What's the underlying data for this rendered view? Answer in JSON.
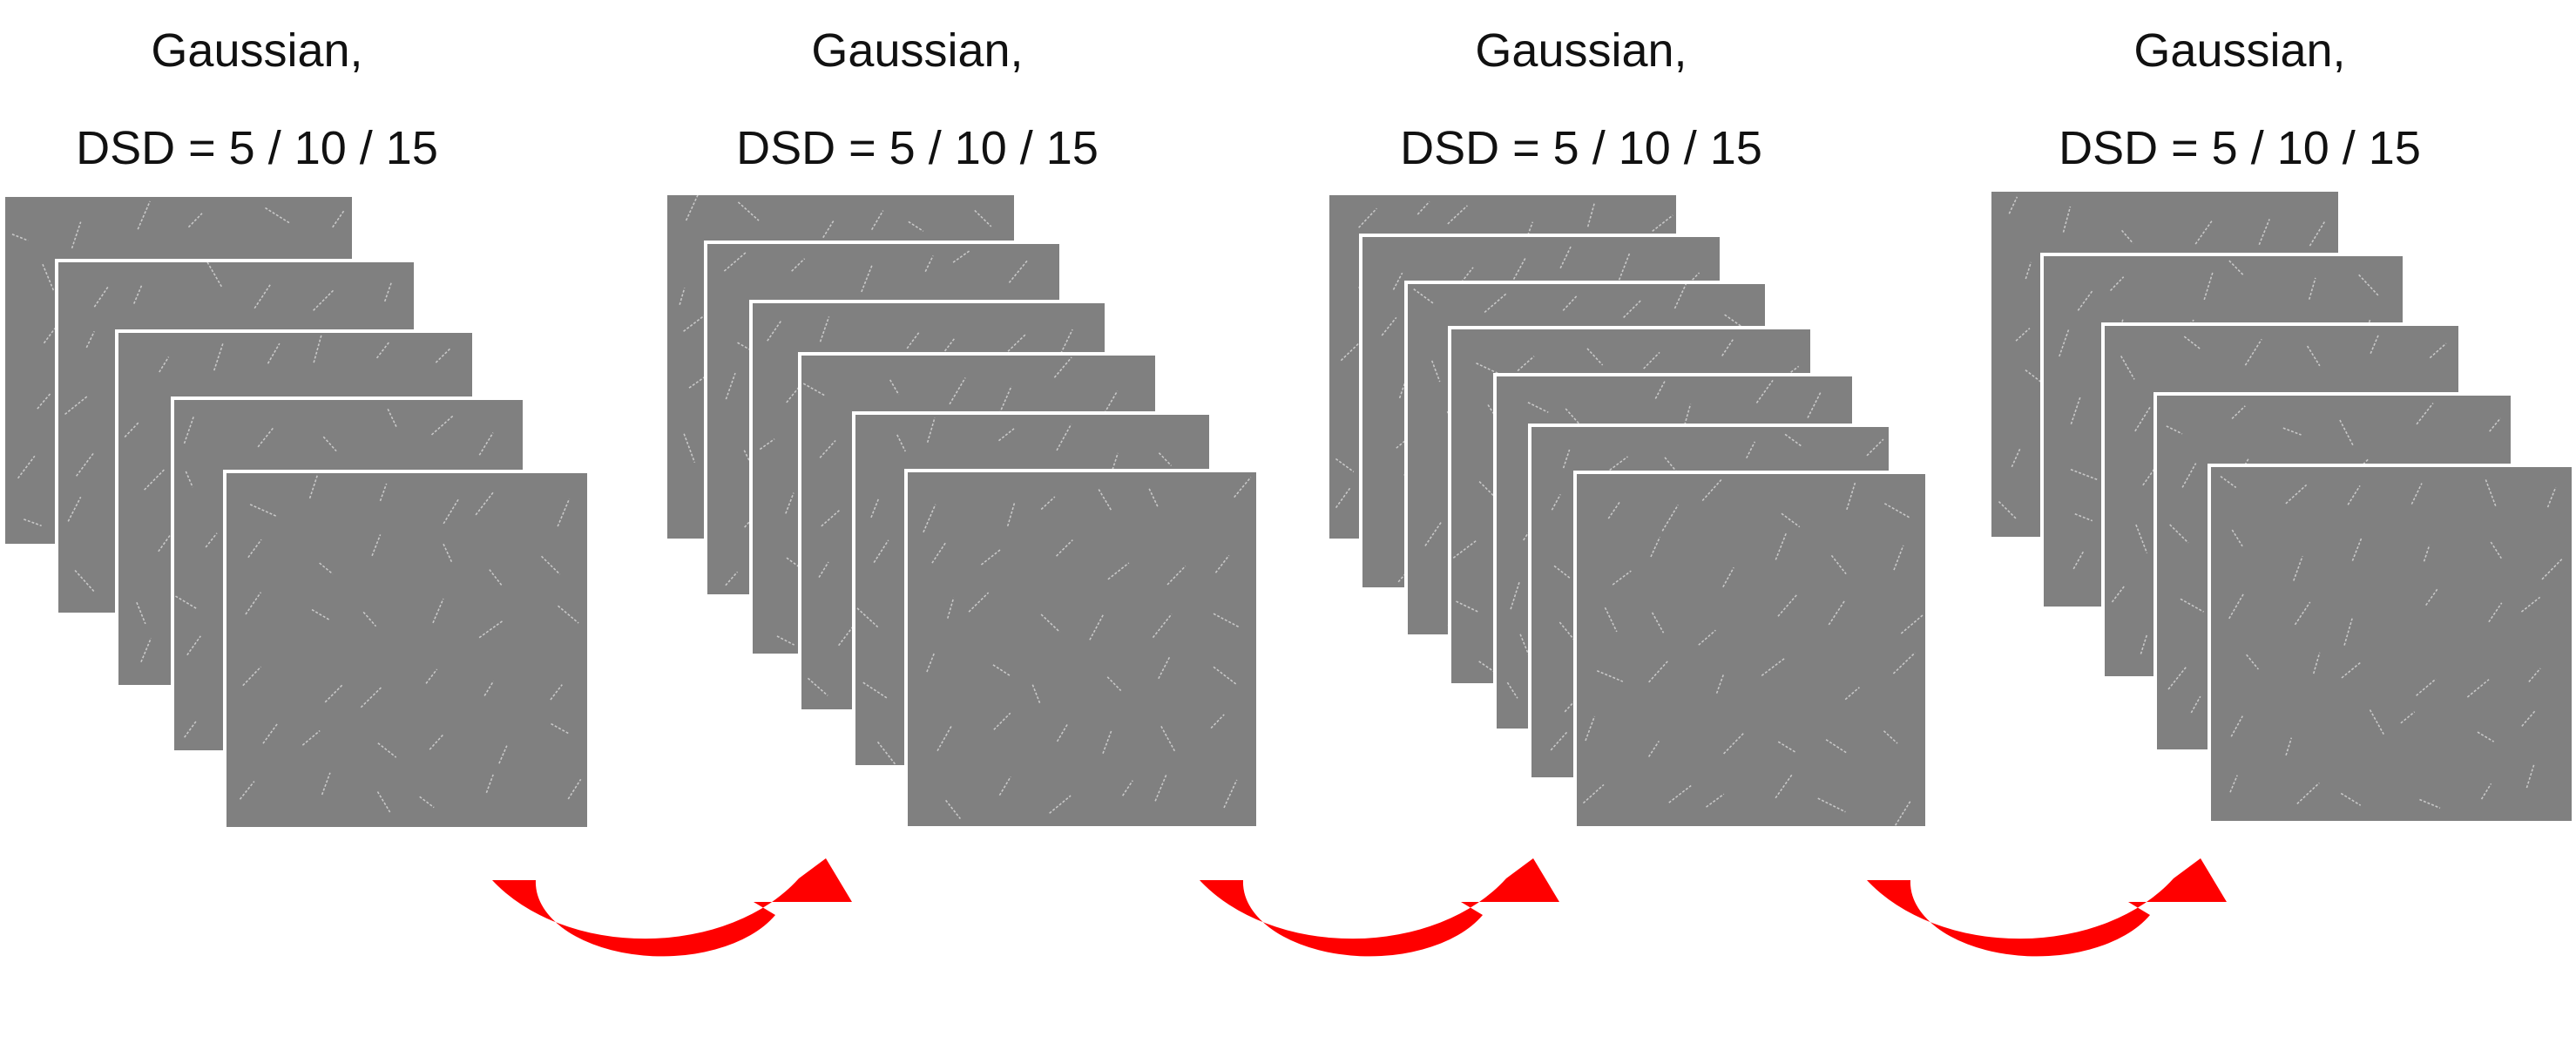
{
  "groups": [
    {
      "title_line1": "Gaussian,",
      "title_line2": "DSD = 5 / 10 / 15",
      "frame_count": 5
    },
    {
      "title_line1": "Gaussian,",
      "title_line2": "DSD = 5 / 10 / 15",
      "frame_count": 6
    },
    {
      "title_line1": "Gaussian,",
      "title_line2": "DSD = 5 / 10 / 15",
      "frame_count": 7
    },
    {
      "title_line1": "Gaussian,",
      "title_line2": "DSD = 5 / 10 / 15",
      "frame_count": 5
    }
  ],
  "colors": {
    "frame_fill": "#808080",
    "frame_border": "#ffffff",
    "stimulus_line": "#c8c8c8",
    "arrow": "#ff0000",
    "text": "#111111"
  }
}
